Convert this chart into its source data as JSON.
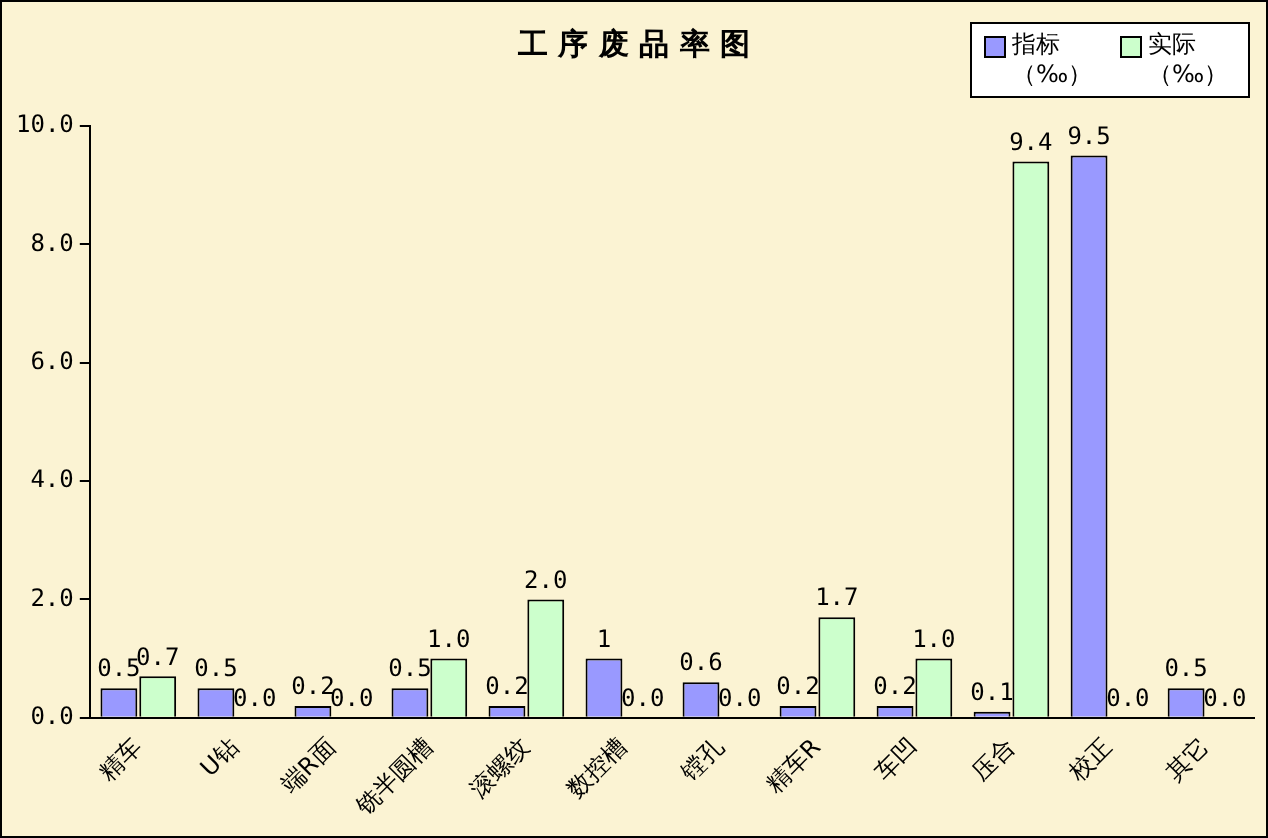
{
  "chart_data": {
    "type": "bar",
    "title": "工 序 废 品 率 图",
    "categories": [
      "精车",
      "U钻",
      "端R面",
      "铣半圆槽",
      "滚螺纹",
      "数控槽",
      "镗孔",
      "精车R",
      "车凹",
      "压合",
      "校正",
      "其它"
    ],
    "series": [
      {
        "name": "指标（‰）",
        "color": "#9999ff",
        "values": [
          0.5,
          0.5,
          0.2,
          0.5,
          0.2,
          1,
          0.6,
          0.2,
          0.2,
          0.1,
          9.5,
          0.5
        ],
        "value_labels": [
          "0.5",
          "0.5",
          "0.2",
          "0.5",
          "0.2",
          "1",
          "0.6",
          "0.2",
          "0.2",
          "0.1",
          "9.5",
          "0.5"
        ]
      },
      {
        "name": "实际（‰）",
        "color": "#ccffcc",
        "values": [
          0.7,
          0.0,
          0.0,
          1.0,
          2.0,
          0.0,
          0.0,
          1.7,
          1.0,
          9.4,
          0.0,
          0.0
        ],
        "value_labels": [
          "0.7",
          "0.0",
          "0.0",
          "1.0",
          "2.0",
          "0.0",
          "0.0",
          "1.7",
          "1.0",
          "9.4",
          "0.0",
          "0.0"
        ]
      }
    ],
    "ylim": [
      0,
      10
    ],
    "yticks": [
      {
        "value": 0,
        "label": "0.0"
      },
      {
        "value": 2,
        "label": "2.0"
      },
      {
        "value": 4,
        "label": "4.0"
      },
      {
        "value": 6,
        "label": "6.0"
      },
      {
        "value": 8,
        "label": "8.0"
      },
      {
        "value": 10,
        "label": "10.0"
      }
    ],
    "grid": false,
    "legend": "top right"
  }
}
